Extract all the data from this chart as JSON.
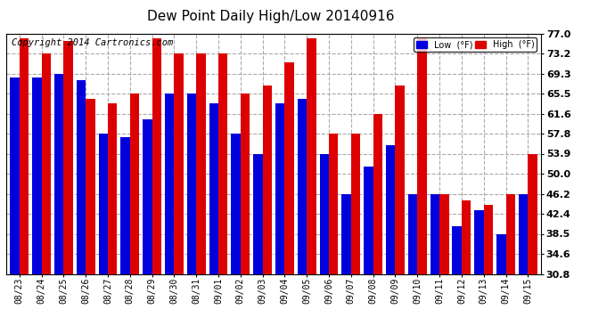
{
  "title": "Dew Point Daily High/Low 20140916",
  "copyright": "Copyright 2014 Cartronics.com",
  "dates": [
    "08/23",
    "08/24",
    "08/25",
    "08/26",
    "08/27",
    "08/28",
    "08/29",
    "08/30",
    "08/31",
    "09/01",
    "09/02",
    "09/03",
    "09/04",
    "09/05",
    "09/06",
    "09/07",
    "09/08",
    "09/09",
    "09/10",
    "09/11",
    "09/12",
    "09/13",
    "09/14",
    "09/15"
  ],
  "high": [
    76.0,
    73.2,
    75.5,
    64.5,
    63.5,
    65.5,
    76.0,
    73.2,
    73.2,
    73.2,
    65.5,
    67.0,
    71.5,
    76.0,
    57.8,
    57.8,
    61.6,
    67.0,
    76.0,
    46.2,
    45.0,
    44.0,
    46.2,
    53.9
  ],
  "low": [
    68.5,
    68.5,
    69.3,
    68.0,
    57.8,
    57.0,
    60.5,
    65.5,
    65.5,
    63.5,
    57.8,
    53.9,
    63.5,
    64.5,
    53.9,
    46.2,
    51.5,
    55.5,
    46.2,
    46.2,
    40.0,
    43.0,
    38.5,
    46.2
  ],
  "yticks": [
    30.8,
    34.6,
    38.5,
    42.4,
    46.2,
    50.0,
    53.9,
    57.8,
    61.6,
    65.5,
    69.3,
    73.2,
    77.0
  ],
  "ymin": 30.8,
  "ymax": 77.0,
  "bar_color_low": "#0000dd",
  "bar_color_high": "#dd0000",
  "background_color": "#ffffff",
  "plot_bg_color": "#ffffff",
  "grid_color": "#aaaaaa",
  "title_fontsize": 11,
  "copyright_fontsize": 7.5,
  "legend_low_label": "Low  (°F)",
  "legend_high_label": "High  (°F)"
}
